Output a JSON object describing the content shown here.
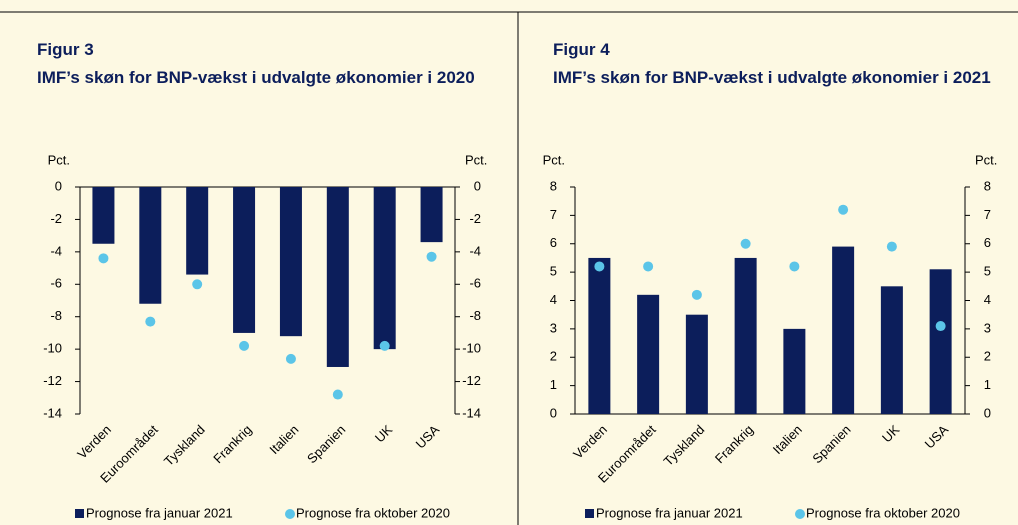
{
  "chart_data": [
    {
      "type": "bar",
      "figure_label": "Figur 3",
      "title": "IMF’s skøn for BNP-vækst i udvalgte økonomier i 2020",
      "ylabel": "Pct.",
      "y2label": "Pct.",
      "categories": [
        "Verden",
        "Euroområdet",
        "Tyskland",
        "Frankrig",
        "Italien",
        "Spanien",
        "UK",
        "USA"
      ],
      "series": [
        {
          "name": "Prognose fra januar 2021",
          "type": "bar",
          "color": "#0c1e5b",
          "values": [
            -3.5,
            -7.2,
            -5.4,
            -9.0,
            -9.2,
            -11.1,
            -10.0,
            -3.4
          ]
        },
        {
          "name": "Prognose fra oktober 2020",
          "type": "scatter",
          "color": "#5bc5e8",
          "values": [
            -4.4,
            -8.3,
            -6.0,
            -9.8,
            -10.6,
            -12.8,
            -9.8,
            -4.3
          ]
        }
      ],
      "ylim": [
        -14,
        0
      ],
      "yticks": [
        0,
        -2,
        -4,
        -6,
        -8,
        -10,
        -12,
        -14
      ],
      "y2lim": [
        -14,
        0
      ],
      "y2ticks": [
        0,
        -2,
        -4,
        -6,
        -8,
        -10,
        -12,
        -14
      ]
    },
    {
      "type": "bar",
      "figure_label": "Figur 4",
      "title": "IMF’s skøn for BNP-vækst i udvalgte økonomier i 2021",
      "ylabel": "Pct.",
      "y2label": "Pct.",
      "categories": [
        "Verden",
        "Euroområdet",
        "Tyskland",
        "Frankrig",
        "Italien",
        "Spanien",
        "UK",
        "USA"
      ],
      "series": [
        {
          "name": "Prognose fra januar 2021",
          "type": "bar",
          "color": "#0c1e5b",
          "values": [
            5.5,
            4.2,
            3.5,
            5.5,
            3.0,
            5.9,
            4.5,
            5.1
          ]
        },
        {
          "name": "Prognose fra oktober 2020",
          "type": "scatter",
          "color": "#5bc5e8",
          "values": [
            5.2,
            5.2,
            4.2,
            6.0,
            5.2,
            7.2,
            5.9,
            3.1
          ]
        }
      ],
      "ylim": [
        0,
        8
      ],
      "yticks": [
        0,
        1,
        2,
        3,
        4,
        5,
        6,
        7,
        8
      ],
      "y2lim": [
        0,
        8
      ],
      "y2ticks": [
        0,
        1,
        2,
        3,
        4,
        5,
        6,
        7,
        8
      ]
    }
  ]
}
